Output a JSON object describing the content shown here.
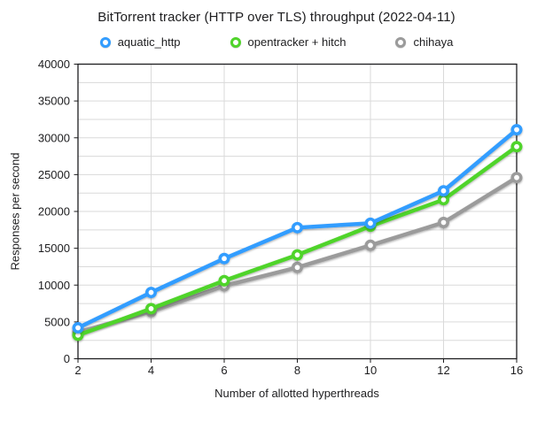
{
  "chart_data": {
    "type": "line",
    "title": "BitTorrent tracker (HTTP over TLS) throughput (2022-04-11)",
    "xlabel": "Number of allotted hyperthreads",
    "ylabel": "Responses per second",
    "categories": [
      2,
      4,
      6,
      8,
      10,
      12,
      16
    ],
    "series": [
      {
        "name": "aquatic_http",
        "color": "#339dff",
        "values": [
          4200,
          9000,
          13600,
          17800,
          18400,
          22800,
          31100
        ]
      },
      {
        "name": "opentracker + hitch",
        "color": "#50d42b",
        "values": [
          3200,
          6800,
          10600,
          14100,
          18000,
          21600,
          28800
        ]
      },
      {
        "name": "chihaya",
        "color": "#9b9b9b",
        "values": [
          3600,
          6400,
          9900,
          12400,
          15400,
          18500,
          24600
        ]
      }
    ],
    "ylim": [
      0,
      40000
    ],
    "yticks": [
      0,
      5000,
      10000,
      15000,
      20000,
      25000,
      30000,
      35000,
      40000
    ],
    "grid": {
      "horizontal_interval": 2500,
      "vertical_at_each_category": true
    },
    "legend_position": "top",
    "marker": "open-circle"
  },
  "colors": {
    "background": "#ffffff",
    "gridline": "#dadada",
    "axis": "#1d1d1f",
    "text": "#1d1d1f"
  }
}
